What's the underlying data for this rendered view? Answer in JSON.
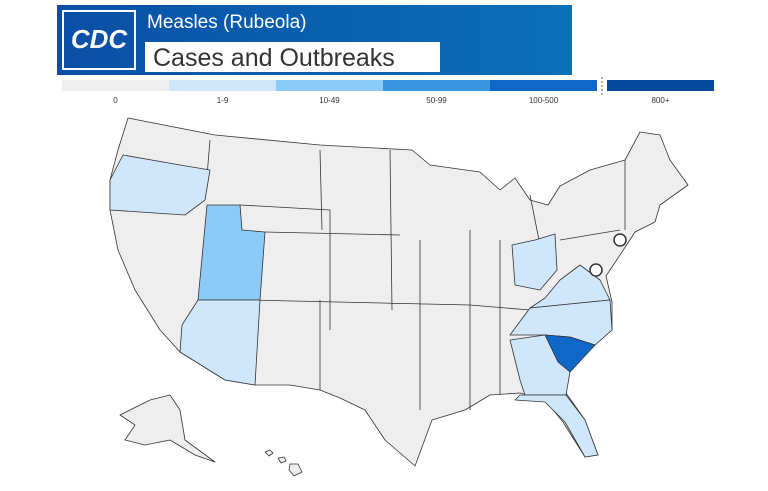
{
  "header": {
    "logo": "CDC",
    "title": "Measles (Rubeola)",
    "subtitle": "Cases and Outbreaks"
  },
  "legend": {
    "bins": [
      {
        "label": "0",
        "color": "#eeeeee"
      },
      {
        "label": "1-9",
        "color": "#cfe6fb"
      },
      {
        "label": "10-49",
        "color": "#8ccbf7"
      },
      {
        "label": "50-99",
        "color": "#3a95e0"
      },
      {
        "label": "100-500",
        "color": "#0f67c8"
      },
      {
        "label": "800+",
        "color": "#064a9e"
      }
    ]
  }
}
